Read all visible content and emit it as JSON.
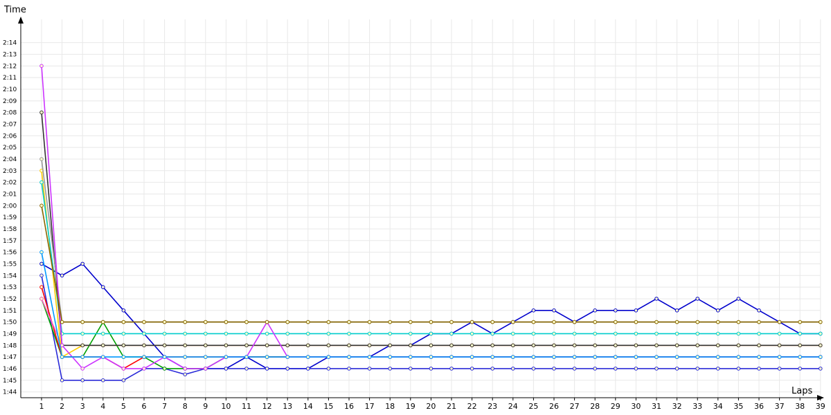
{
  "chart_data": {
    "type": "line",
    "xlabel": "Laps",
    "ylabel": "Time",
    "x": [
      1,
      2,
      3,
      4,
      5,
      6,
      7,
      8,
      9,
      10,
      11,
      12,
      13,
      14,
      15,
      16,
      17,
      18,
      19,
      20,
      21,
      22,
      23,
      24,
      25,
      26,
      27,
      28,
      29,
      30,
      31,
      32,
      33,
      34,
      35,
      36,
      37,
      38,
      39
    ],
    "x_tick_labels": [
      "1",
      "2",
      "3",
      "4",
      "5",
      "6",
      "7",
      "8",
      "9",
      "10",
      "11",
      "12",
      "13",
      "14",
      "15",
      "16",
      "17",
      "18",
      "19",
      "20",
      "21",
      "22",
      "23",
      "24",
      "25",
      "26",
      "27",
      "28",
      "29",
      "30",
      "31",
      "32",
      "33",
      "34",
      "35",
      "36",
      "37",
      "38",
      "39"
    ],
    "y_tick_labels": [
      "1:44",
      "1:45",
      "1:46",
      "1:47",
      "1:48",
      "1:49",
      "1:50",
      "1:51",
      "1:52",
      "1:53",
      "1:54",
      "1:55",
      "1:56",
      "1:57",
      "1:58",
      "1:59",
      "2:00",
      "2:01",
      "2:02",
      "2:03",
      "2:04",
      "2:05",
      "2:06",
      "2:07",
      "2:08",
      "2:09",
      "2:10",
      "2:11",
      "2:12",
      "2:13",
      "2:14"
    ],
    "y_unit": "seconds",
    "ylim": [
      103.5,
      136
    ],
    "grid": true,
    "series": [
      {
        "color": "#0000cc",
        "values": [
          115,
          114,
          115,
          113,
          111,
          109,
          107,
          106,
          106,
          106,
          107,
          106,
          106,
          106,
          107,
          107,
          107,
          108,
          108,
          109,
          109,
          110,
          109,
          110,
          111,
          111,
          110,
          111,
          111,
          111,
          112,
          111,
          112,
          111,
          112,
          111,
          110,
          109,
          109
        ]
      },
      {
        "color": "#2a2ad8",
        "values": [
          114,
          105,
          105,
          105,
          105,
          106,
          106,
          105.5,
          106,
          106,
          106,
          106,
          106,
          106,
          106,
          106,
          106,
          106,
          106,
          106,
          106,
          106,
          106,
          106,
          106,
          106,
          106,
          106,
          106,
          106,
          106,
          106,
          106,
          106,
          106,
          106,
          106,
          106,
          106
        ]
      },
      {
        "color": "#00a000",
        "values": [
          112,
          107,
          107,
          110,
          107,
          107,
          106,
          106,
          106,
          107,
          107,
          107,
          107,
          107,
          107,
          107,
          107,
          107,
          107,
          107,
          107,
          107,
          107,
          107,
          107,
          107,
          107,
          107,
          107,
          107,
          107,
          107,
          107,
          107,
          107,
          107,
          107,
          107,
          107
        ]
      },
      {
        "color": "#ff0000",
        "values": [
          113,
          107,
          107,
          107,
          106,
          107,
          107,
          107,
          107,
          107,
          107,
          107,
          107,
          107,
          107,
          107,
          107,
          107,
          107,
          107,
          107,
          107,
          107,
          107,
          107,
          107,
          107,
          107,
          107,
          107,
          107,
          107,
          107,
          107,
          107,
          107,
          107,
          107,
          107
        ]
      },
      {
        "color": "#ff66cc",
        "values": [
          112,
          108,
          108,
          108,
          108,
          108,
          108,
          108,
          108,
          108,
          108,
          108,
          108,
          108,
          108,
          108,
          108,
          108,
          108,
          108,
          108,
          108,
          108,
          108,
          108,
          108,
          108,
          108,
          108,
          108,
          108,
          108,
          108,
          108,
          108,
          108,
          108,
          108,
          108
        ]
      },
      {
        "color": "#ffcc00",
        "values": [
          123,
          107,
          108,
          108,
          108,
          108,
          108,
          108,
          108,
          108,
          108,
          108,
          108,
          108,
          108,
          108,
          108,
          108,
          108,
          108,
          108,
          108,
          108,
          108,
          108,
          108,
          108,
          108,
          108,
          108,
          108,
          108,
          108,
          108,
          108,
          108,
          108,
          108,
          108
        ]
      },
      {
        "color": "#00cccc",
        "values": [
          122,
          109,
          109,
          109,
          109,
          109,
          109,
          109,
          109,
          109,
          109,
          109,
          109,
          109,
          109,
          109,
          109,
          109,
          109,
          109,
          109,
          109,
          109,
          109,
          109,
          109,
          109,
          109,
          109,
          109,
          109,
          109,
          109,
          109,
          109,
          109,
          109,
          109,
          109
        ]
      },
      {
        "color": "#333333",
        "values": [
          128,
          108,
          108,
          108,
          108,
          108,
          108,
          108,
          108,
          108,
          108,
          108,
          108,
          108,
          108,
          108,
          108,
          108,
          108,
          108,
          108,
          108,
          108,
          108,
          108,
          108,
          108,
          108,
          108,
          108,
          108,
          108,
          108,
          108,
          108,
          108,
          108,
          108,
          108
        ]
      },
      {
        "color": "#999999",
        "values": [
          124,
          110,
          110,
          110,
          110,
          110,
          110,
          110,
          110,
          110,
          110,
          110,
          110,
          110,
          110,
          110,
          110,
          110,
          110,
          110,
          110,
          110,
          110,
          110,
          110,
          110,
          110,
          110,
          110,
          110,
          110,
          110,
          110,
          110,
          110,
          110,
          110,
          110,
          110
        ]
      },
      {
        "color": "#cc33ff",
        "values": [
          132,
          108,
          106,
          107,
          106,
          106,
          107,
          106,
          106,
          107,
          107,
          110,
          107,
          107,
          107,
          107,
          107,
          107,
          107,
          107,
          107,
          107,
          107,
          107,
          107,
          107,
          107,
          107,
          107,
          107,
          107,
          107,
          107,
          107,
          107,
          107,
          107,
          107,
          107
        ]
      },
      {
        "color": "#0099ff",
        "values": [
          116,
          107,
          107,
          107,
          107,
          107,
          107,
          107,
          107,
          107,
          107,
          107,
          107,
          107,
          107,
          107,
          107,
          107,
          107,
          107,
          107,
          107,
          107,
          107,
          107,
          107,
          107,
          107,
          107,
          107,
          107,
          107,
          107,
          107,
          107,
          107,
          107,
          107,
          107
        ]
      },
      {
        "color": "#886600",
        "values": [
          120,
          110,
          110,
          110,
          110,
          110,
          110,
          110,
          110,
          110,
          110,
          110,
          110,
          110,
          110,
          110,
          110,
          110,
          110,
          110,
          110,
          110,
          110,
          110,
          110,
          110,
          110,
          110,
          110,
          110,
          110,
          110,
          110,
          110,
          110,
          110,
          110,
          110,
          110
        ]
      }
    ]
  }
}
